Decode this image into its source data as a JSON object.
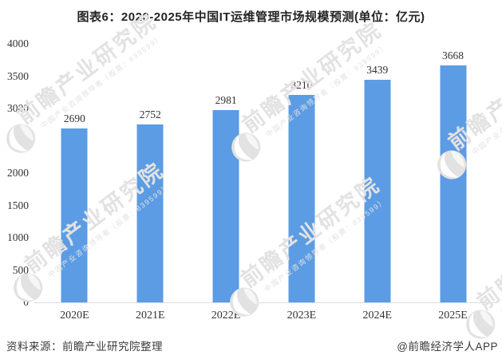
{
  "title": "图表6：2020-2025年中国IT运维管理市场规模预测(单位：亿元)",
  "chart_data": {
    "type": "bar",
    "title": "2020-2025年中国IT运维管理市场规模预测",
    "unit": "亿元",
    "categories": [
      "2020E",
      "2021E",
      "2022E",
      "2023E",
      "2024E",
      "2025E"
    ],
    "values": [
      2690,
      2752,
      2981,
      3210,
      3439,
      3668
    ],
    "xlabel": "",
    "ylabel": "",
    "ylim": [
      0,
      4000
    ],
    "y_ticks": [
      0,
      500,
      1000,
      1500,
      2000,
      2500,
      3000,
      3500,
      4000
    ],
    "grid": false,
    "legend": "none",
    "value_labels": true,
    "bar_color": "#5B9CE4",
    "axis_line_color": "#dcdcdc",
    "label_color": "#333333"
  },
  "footer": {
    "source": "资料来源：前瞻产业研究院整理",
    "credit": "@前瞻经济学人APP"
  },
  "watermark": {
    "logo": "qianzhan-globe",
    "text": "前瞻产业研究院",
    "subtext": "中国产业咨询领导者（股票：839599）",
    "color": "#e2e2e2"
  }
}
